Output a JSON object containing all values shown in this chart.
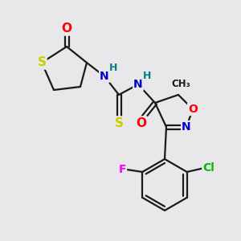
{
  "bg_color": "#e8e8ea",
  "bond_color": "#1a1a1a",
  "bond_width": 1.6,
  "atom_colors": {
    "O": "#ff0000",
    "N": "#0000cc",
    "S": "#cccc00",
    "F": "#ff00ff",
    "Cl": "#00bb00",
    "H": "#008080",
    "C": "#1a1a1a"
  },
  "font_size": 10
}
